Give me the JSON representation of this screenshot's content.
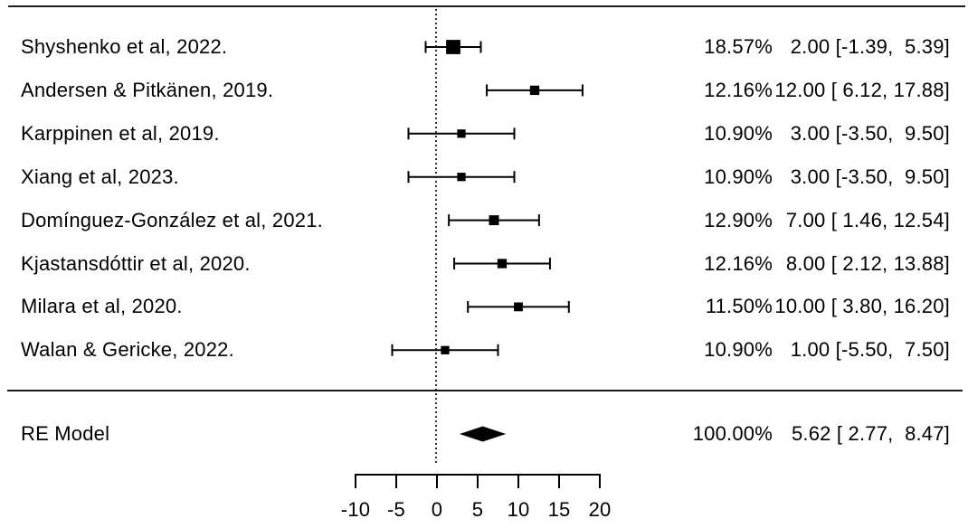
{
  "chart_data": {
    "type": "forest",
    "title": "",
    "x_axis": {
      "ticks": [
        "-10",
        "-5",
        "0",
        "5",
        "10",
        "15",
        "20"
      ],
      "tick_values": [
        -10,
        -5,
        0,
        5,
        10,
        15,
        20
      ],
      "xlim": [
        -10,
        20
      ],
      "reference_line": 0
    },
    "rows": [
      {
        "label": "Shyshenko et al, 2022.",
        "weight_label": "18.57%",
        "weight_pct": 18.57,
        "estimate": 2.0,
        "ci_low": -1.39,
        "ci_high": 5.39,
        "estimate_label": "2.00 [-1.39,  5.39]"
      },
      {
        "label": "Andersen & Pitkänen, 2019.",
        "weight_label": "12.16%",
        "weight_pct": 12.16,
        "estimate": 12.0,
        "ci_low": 6.12,
        "ci_high": 17.88,
        "estimate_label": "12.00 [ 6.12, 17.88]"
      },
      {
        "label": "Karppinen et al, 2019.",
        "weight_label": "10.90%",
        "weight_pct": 10.9,
        "estimate": 3.0,
        "ci_low": -3.5,
        "ci_high": 9.5,
        "estimate_label": "3.00 [-3.50,  9.50]"
      },
      {
        "label": "Xiang et al, 2023.",
        "weight_label": "10.90%",
        "weight_pct": 10.9,
        "estimate": 3.0,
        "ci_low": -3.5,
        "ci_high": 9.5,
        "estimate_label": "3.00 [-3.50,  9.50]"
      },
      {
        "label": "Domínguez-González et al, 2021.",
        "weight_label": "12.90%",
        "weight_pct": 12.9,
        "estimate": 7.0,
        "ci_low": 1.46,
        "ci_high": 12.54,
        "estimate_label": "7.00 [ 1.46, 12.54]"
      },
      {
        "label": "Kjastansdóttir et al, 2020.",
        "weight_label": "12.16%",
        "weight_pct": 12.16,
        "estimate": 8.0,
        "ci_low": 2.12,
        "ci_high": 13.88,
        "estimate_label": "8.00 [ 2.12, 13.88]"
      },
      {
        "label": "Milara et al, 2020.",
        "weight_label": "11.50%",
        "weight_pct": 11.5,
        "estimate": 10.0,
        "ci_low": 3.8,
        "ci_high": 16.2,
        "estimate_label": "10.00 [ 3.80, 16.20]"
      },
      {
        "label": "Walan & Gericke, 2022.",
        "weight_label": "10.90%",
        "weight_pct": 10.9,
        "estimate": 1.0,
        "ci_low": -5.5,
        "ci_high": 7.5,
        "estimate_label": "1.00 [-5.50,  7.50]"
      }
    ],
    "summary": {
      "label": "RE Model",
      "weight_label": "100.00%",
      "estimate": 5.62,
      "ci_low": 2.77,
      "ci_high": 8.47,
      "estimate_label": "5.62 [ 2.77,  8.47]"
    },
    "colors": {
      "ink": "#000000",
      "background": "#ffffff"
    }
  }
}
